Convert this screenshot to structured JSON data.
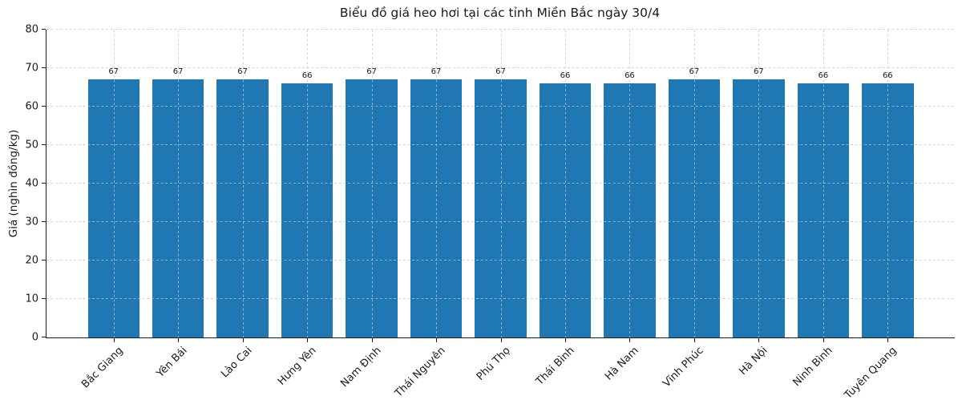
{
  "chart_data": {
    "type": "bar",
    "title": "Biểu đồ giá heo hơi tại các tỉnh Miền Bắc ngày 30/4",
    "xlabel": "",
    "ylabel": "Giá (nghìn đồng/kg)",
    "categories": [
      "Bắc Giang",
      "Yên Bái",
      "Lào Cai",
      "Hưng Yên",
      "Nam Định",
      "Thái Nguyên",
      "Phú Thọ",
      "Thái Bình",
      "Hà Nam",
      "Vĩnh Phúc",
      "Hà Nội",
      "Ninh Bình",
      "Tuyên Quang"
    ],
    "values": [
      67,
      67,
      67,
      66,
      67,
      67,
      67,
      66,
      66,
      67,
      67,
      66,
      66
    ],
    "ylim": [
      0,
      80
    ],
    "yticks": [
      0,
      10,
      20,
      30,
      40,
      50,
      60,
      70,
      80
    ],
    "bar_color": "#1f77b4",
    "grid": true,
    "grid_style": "dashed",
    "legend": "none",
    "value_labels_shown": true
  }
}
